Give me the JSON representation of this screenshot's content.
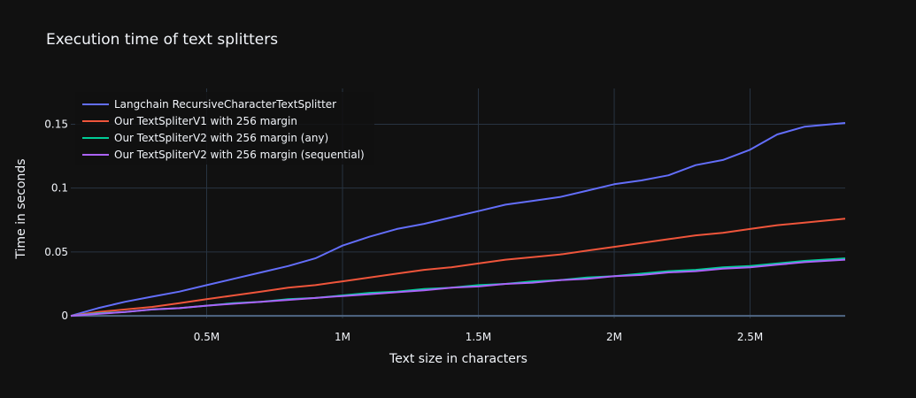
{
  "chart_data": {
    "type": "line",
    "title": "Execution time of text splitters",
    "xlabel": "Text size in characters",
    "ylabel": "Time in seconds",
    "xlim": [
      0,
      2850000
    ],
    "ylim": [
      -0.002,
      0.178
    ],
    "x_ticks": [
      {
        "value": 500000,
        "label": "0.5M"
      },
      {
        "value": 1000000,
        "label": "1M"
      },
      {
        "value": 1500000,
        "label": "1.5M"
      },
      {
        "value": 2000000,
        "label": "2M"
      },
      {
        "value": 2500000,
        "label": "2.5M"
      }
    ],
    "y_ticks": [
      {
        "value": 0,
        "label": "0"
      },
      {
        "value": 0.05,
        "label": "0.05"
      },
      {
        "value": 0.1,
        "label": "0.1"
      },
      {
        "value": 0.15,
        "label": "0.15"
      }
    ],
    "grid": true,
    "legend_position": "top-left",
    "series": [
      {
        "name": "Langchain RecursiveCharacterTextSplitter",
        "color": "#636efa",
        "x": [
          0,
          100000,
          200000,
          300000,
          400000,
          500000,
          600000,
          700000,
          800000,
          900000,
          1000000,
          1100000,
          1200000,
          1300000,
          1400000,
          1500000,
          1600000,
          1700000,
          1800000,
          1900000,
          2000000,
          2100000,
          2200000,
          2300000,
          2400000,
          2500000,
          2600000,
          2700000,
          2850000
        ],
        "y": [
          0,
          0.006,
          0.011,
          0.015,
          0.019,
          0.024,
          0.029,
          0.034,
          0.039,
          0.045,
          0.055,
          0.062,
          0.068,
          0.072,
          0.077,
          0.082,
          0.087,
          0.09,
          0.093,
          0.098,
          0.103,
          0.106,
          0.11,
          0.118,
          0.122,
          0.13,
          0.142,
          0.148,
          0.151
        ]
      },
      {
        "name": "Our TextSpliterV1 with 256 margin",
        "color": "#ef553b",
        "x": [
          0,
          100000,
          200000,
          300000,
          400000,
          500000,
          600000,
          700000,
          800000,
          900000,
          1000000,
          1100000,
          1200000,
          1300000,
          1400000,
          1500000,
          1600000,
          1700000,
          1800000,
          1900000,
          2000000,
          2100000,
          2200000,
          2300000,
          2400000,
          2500000,
          2600000,
          2700000,
          2850000
        ],
        "y": [
          0,
          0.003,
          0.005,
          0.007,
          0.01,
          0.013,
          0.016,
          0.019,
          0.022,
          0.024,
          0.027,
          0.03,
          0.033,
          0.036,
          0.038,
          0.041,
          0.044,
          0.046,
          0.048,
          0.051,
          0.054,
          0.057,
          0.06,
          0.063,
          0.065,
          0.068,
          0.071,
          0.073,
          0.076
        ]
      },
      {
        "name": "Our TextSpliterV2 with 256 margin (any)",
        "color": "#00cc96",
        "x": [
          0,
          100000,
          200000,
          300000,
          400000,
          500000,
          600000,
          700000,
          800000,
          900000,
          1000000,
          1100000,
          1200000,
          1300000,
          1400000,
          1500000,
          1600000,
          1700000,
          1800000,
          1900000,
          2000000,
          2100000,
          2200000,
          2300000,
          2400000,
          2500000,
          2600000,
          2700000,
          2850000
        ],
        "y": [
          0,
          0.002,
          0.003,
          0.005,
          0.006,
          0.008,
          0.01,
          0.011,
          0.013,
          0.014,
          0.016,
          0.018,
          0.019,
          0.021,
          0.022,
          0.024,
          0.025,
          0.027,
          0.028,
          0.03,
          0.031,
          0.033,
          0.035,
          0.036,
          0.038,
          0.039,
          0.041,
          0.043,
          0.045
        ]
      },
      {
        "name": "Our TextSpliterV2 with 256 margin (sequential)",
        "color": "#ab63fa",
        "x": [
          0,
          100000,
          200000,
          300000,
          400000,
          500000,
          600000,
          700000,
          800000,
          900000,
          1000000,
          1100000,
          1200000,
          1300000,
          1400000,
          1500000,
          1600000,
          1700000,
          1800000,
          1900000,
          2000000,
          2100000,
          2200000,
          2300000,
          2400000,
          2500000,
          2600000,
          2700000,
          2850000
        ],
        "y": [
          0,
          0.0015,
          0.003,
          0.005,
          0.006,
          0.008,
          0.0095,
          0.011,
          0.0125,
          0.014,
          0.0155,
          0.017,
          0.0185,
          0.02,
          0.022,
          0.023,
          0.025,
          0.026,
          0.028,
          0.029,
          0.031,
          0.032,
          0.034,
          0.035,
          0.037,
          0.038,
          0.04,
          0.042,
          0.044
        ]
      }
    ]
  }
}
